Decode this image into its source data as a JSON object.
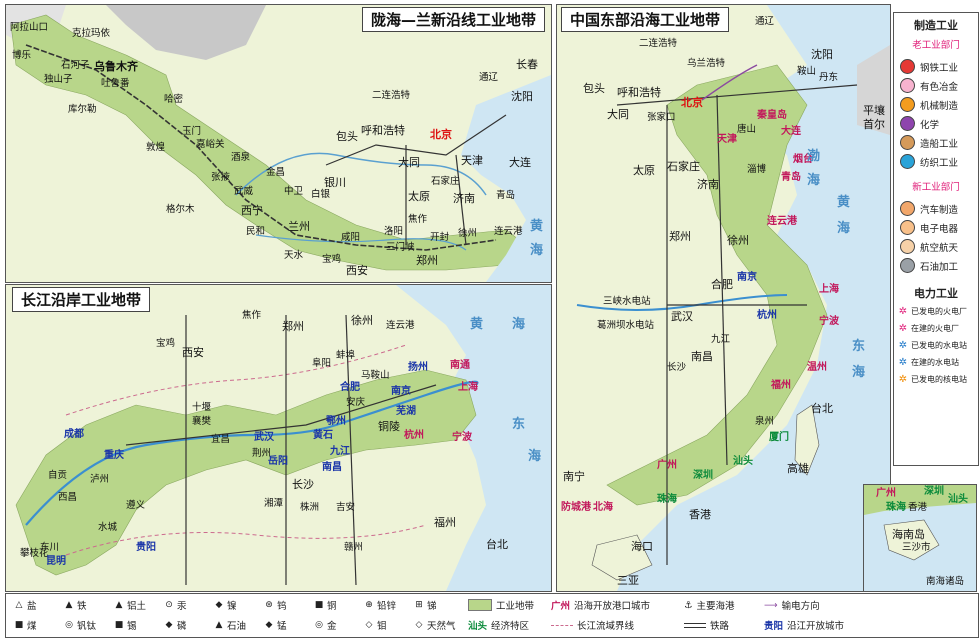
{
  "panels": {
    "longhai": {
      "title": "陇海—兰新沿线工业地带",
      "labels": [
        "阿拉山口",
        "克拉玛依",
        "博乐",
        "独山子",
        "石河子",
        "乌鲁木齐",
        "吐鲁番",
        "库尔勒",
        "哈密",
        "玉门",
        "嘉峪关",
        "敦煌",
        "酒泉",
        "金昌",
        "张掖",
        "武威",
        "格尔木",
        "西宁",
        "兰州",
        "白银",
        "银川",
        "中卫",
        "天水",
        "宝鸡",
        "咸阳",
        "西安",
        "三门峡",
        "洛阳",
        "郑州",
        "开封",
        "徐州",
        "连云港",
        "民和",
        "包头",
        "呼和浩特",
        "二连浩特",
        "大同",
        "太原",
        "石家庄",
        "天津",
        "济南",
        "青岛",
        "焦作",
        "通辽",
        "长春",
        "沈阳",
        "大连"
      ],
      "capital": "北京",
      "seas": [
        "黄",
        "海"
      ]
    },
    "east": {
      "title": "中国东部沿海工业地带",
      "labels": [
        "通辽",
        "二连浩特",
        "乌兰浩特",
        "包头",
        "呼和浩特",
        "大同",
        "张家口",
        "唐山",
        "天津",
        "秦皇岛",
        "大连",
        "丹东",
        "沈阳",
        "鞍山",
        "平壤",
        "首尔",
        "石家庄",
        "太原",
        "济南",
        "青岛",
        "烟台",
        "淄博",
        "郑州",
        "连云港",
        "徐州",
        "南京",
        "上海",
        "杭州",
        "宁波",
        "合肥",
        "武汉",
        "南昌",
        "长沙",
        "温州",
        "福州",
        "泉州",
        "厦门",
        "汕头",
        "深圳",
        "珠海",
        "广州",
        "香港",
        "台北",
        "高雄",
        "南宁",
        "北海",
        "防城港",
        "海口",
        "三亚",
        "九江",
        "三峡水电站",
        "葛洲坝水电站"
      ],
      "capital": "北京",
      "seas": [
        "渤",
        "海",
        "黄",
        "海",
        "东",
        "海"
      ]
    },
    "yangtze": {
      "title": "长江沿岸工业地带",
      "labels": [
        "宝鸡",
        "西安",
        "焦作",
        "郑州",
        "徐州",
        "连云港",
        "阜阳",
        "蚌埠",
        "马鞍山",
        "扬州",
        "南通",
        "合肥",
        "安庆",
        "南京",
        "上海",
        "芜湖",
        "铜陵",
        "宁波",
        "杭州",
        "九江",
        "武汉",
        "鄂州",
        "黄石",
        "南昌",
        "岳阳",
        "长沙",
        "湘潭",
        "株洲",
        "十堰",
        "襄樊",
        "宜昌",
        "荆州",
        "成都",
        "重庆",
        "自贡",
        "泸州",
        "遵义",
        "贵阳",
        "西昌",
        "攀枝花",
        "昆明",
        "水城",
        "东川",
        "福州",
        "台北",
        "吉安",
        "赣州"
      ],
      "seas": [
        "黄",
        "海",
        "东",
        "海"
      ]
    }
  },
  "legend_right": {
    "title_manufacturing": "制造工业",
    "old_sector": "老工业部门",
    "old_items": [
      {
        "label": "钢铁工业",
        "color": "#e53935"
      },
      {
        "label": "有色冶金",
        "color": "#f7b3cf"
      },
      {
        "label": "机械制造",
        "color": "#f39c1f"
      },
      {
        "label": "化学",
        "color": "#8e44ad"
      },
      {
        "label": "造船工业",
        "color": "#d59a5a"
      },
      {
        "label": "纺织工业",
        "color": "#2aa3d8"
      }
    ],
    "new_sector": "新工业部门",
    "new_items": [
      {
        "label": "汽车制造",
        "color": "#f2a76b"
      },
      {
        "label": "电子电器",
        "color": "#f8c08a"
      },
      {
        "label": "航空航天",
        "color": "#f6d1a8"
      },
      {
        "label": "石油加工",
        "color": "#9aa0a6"
      }
    ],
    "title_power": "电力工业",
    "power_items": [
      {
        "label": "已发电的火电厂",
        "color": "#e0207a"
      },
      {
        "label": "在建的火电厂",
        "color": "#e0207a"
      },
      {
        "label": "已发电的水电站",
        "color": "#1f78c8"
      },
      {
        "label": "在建的水电站",
        "color": "#1f78c8"
      },
      {
        "label": "已发电的核电站",
        "color": "#f08a00"
      }
    ]
  },
  "legend_bottom": {
    "minerals": [
      {
        "sym": "△",
        "label": "盐"
      },
      {
        "sym": "▲",
        "label": "铁"
      },
      {
        "sym": "▲",
        "label": "铝土"
      },
      {
        "sym": "⊙",
        "label": "汞"
      },
      {
        "sym": "◆",
        "label": "镍"
      },
      {
        "sym": "⊛",
        "label": "钨"
      },
      {
        "sym": "■",
        "label": "铜"
      },
      {
        "sym": "⊕",
        "label": "铅锌"
      },
      {
        "sym": "⊞",
        "label": "锑"
      },
      {
        "sym": "■",
        "label": "煤"
      },
      {
        "sym": "◎",
        "label": "钒钛"
      },
      {
        "sym": "■",
        "label": "锡"
      },
      {
        "sym": "◆",
        "label": "磷"
      },
      {
        "sym": "▲",
        "label": "石油"
      },
      {
        "sym": "◆",
        "label": "锰"
      },
      {
        "sym": "◎",
        "label": "金"
      },
      {
        "sym": "◇",
        "label": "钼"
      },
      {
        "sym": "◇",
        "label": "天然气"
      }
    ],
    "industrial_belt": "工业地带",
    "port_city_sample": "广州",
    "port_city": "沿海开放港口城市",
    "sez_sample": "汕头",
    "sez": "经济特区",
    "main_port": "主要海港",
    "yangtze_boundary": "长江流域界线",
    "power_direction": "输电方向",
    "railway": "铁路",
    "open_city_sample": "贵阳",
    "open_city": "沿江开放城市"
  },
  "inset": {
    "title": "南海诸岛",
    "labels": [
      "广州",
      "深圳",
      "汕头",
      "珠海",
      "香港",
      "海南岛",
      "三沙市"
    ]
  }
}
